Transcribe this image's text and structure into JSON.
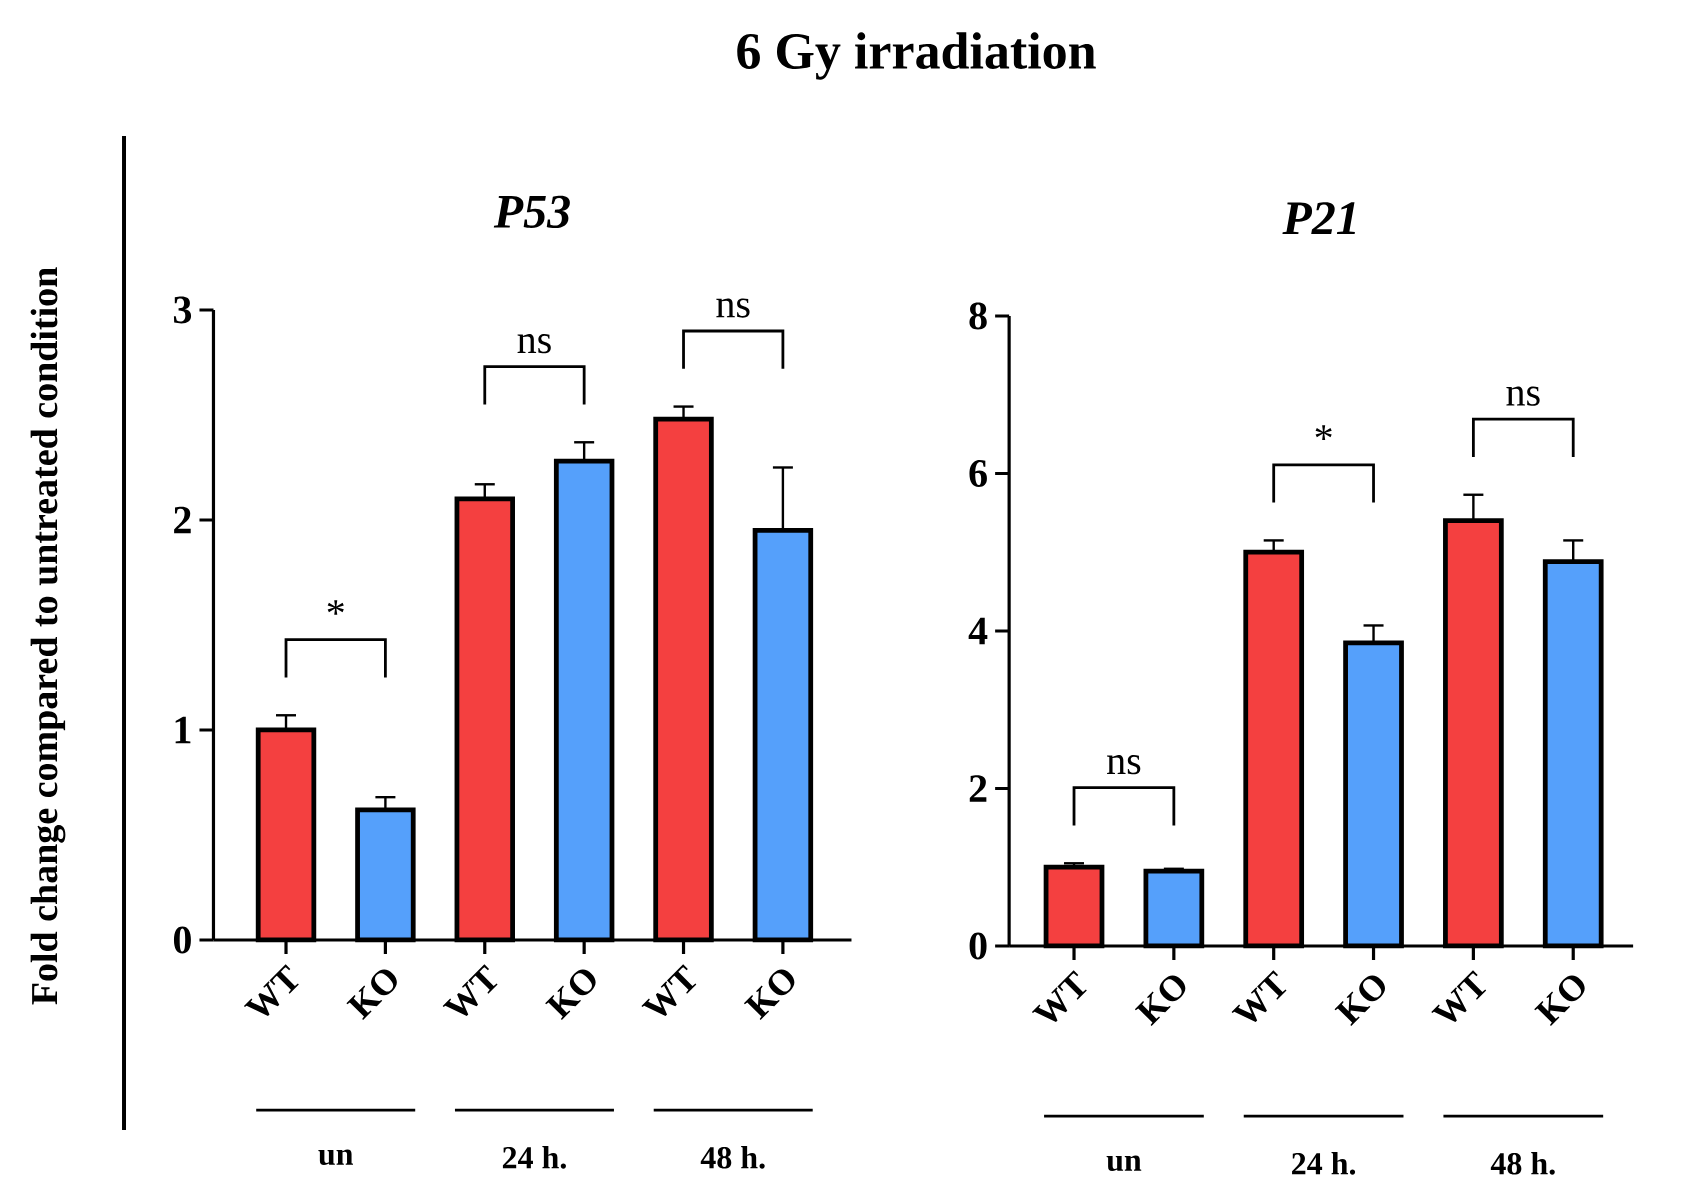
{
  "chart_data": [
    {
      "type": "bar",
      "title": "P53",
      "ylabel": "Fold change compared to untreated condition",
      "categories": [
        "WT",
        "KO",
        "WT",
        "KO",
        "WT",
        "KO"
      ],
      "values": [
        1.0,
        0.62,
        2.1,
        2.28,
        2.48,
        1.95
      ],
      "errors": [
        0.07,
        0.06,
        0.07,
        0.09,
        0.06,
        0.3
      ],
      "colors": [
        "#f44040",
        "#55a0fb",
        "#f44040",
        "#55a0fb",
        "#f44040",
        "#55a0fb"
      ],
      "ylim": [
        0,
        3
      ],
      "yticks": [
        0,
        1,
        2,
        3
      ],
      "annotations": [
        "*",
        "ns",
        "ns",
        "un",
        "24 h.",
        "48 h.",
        "6 Gy irradiation"
      ]
    },
    {
      "type": "bar",
      "title": "P21",
      "categories": [
        "WT",
        "KO",
        "WT",
        "KO",
        "WT",
        "KO"
      ],
      "values": [
        1.0,
        0.95,
        5.0,
        3.85,
        5.4,
        4.88
      ],
      "errors": [
        0.05,
        0.03,
        0.15,
        0.22,
        0.33,
        0.27
      ],
      "colors": [
        "#f44040",
        "#55a0fb",
        "#f44040",
        "#55a0fb",
        "#f44040",
        "#55a0fb"
      ],
      "ylim": [
        0,
        8
      ],
      "yticks": [
        0,
        2,
        4,
        6,
        8
      ],
      "annotations": [
        "ns",
        "*",
        "ns",
        "un",
        "24 h.",
        "48 h."
      ]
    }
  ]
}
